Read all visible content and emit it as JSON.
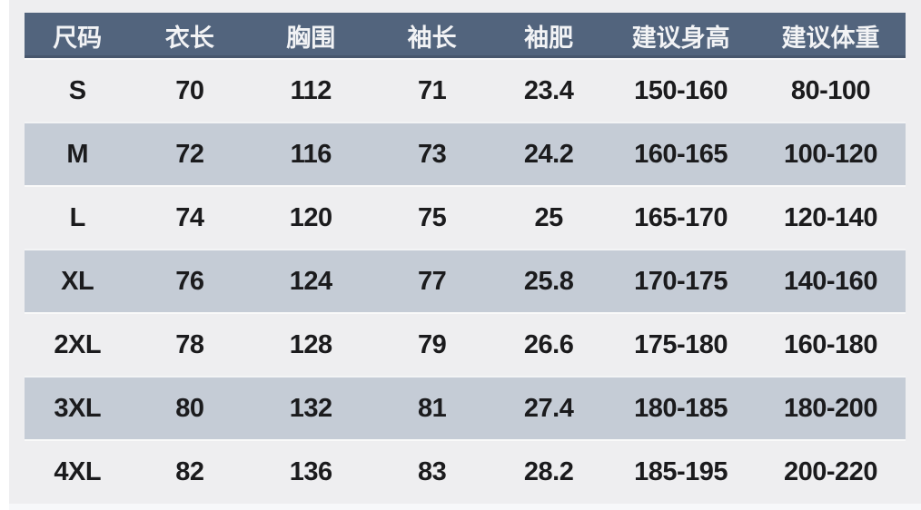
{
  "size_chart": {
    "columns": [
      "尺码",
      "衣长",
      "胸围",
      "袖长",
      "袖肥",
      "建议身高",
      "建议体重"
    ],
    "rows": [
      [
        "S",
        "70",
        "112",
        "71",
        "23.4",
        "150-160",
        "80-100"
      ],
      [
        "M",
        "72",
        "116",
        "73",
        "24.2",
        "160-165",
        "100-120"
      ],
      [
        "L",
        "74",
        "120",
        "75",
        "25",
        "165-170",
        "120-140"
      ],
      [
        "XL",
        "76",
        "124",
        "77",
        "25.8",
        "170-175",
        "140-160"
      ],
      [
        "2XL",
        "78",
        "128",
        "79",
        "26.6",
        "175-180",
        "160-180"
      ],
      [
        "3XL",
        "80",
        "132",
        "81",
        "27.4",
        "180-185",
        "180-200"
      ],
      [
        "4XL",
        "82",
        "136",
        "83",
        "28.2",
        "185-195",
        "200-220"
      ]
    ]
  },
  "colors": {
    "header_bg": "#52647d",
    "header_text": "#f2f3f5",
    "stripe_row_bg": "#c5ccd6",
    "plain_row_bg": "#eeeef0",
    "data_text": "#1b1b1d",
    "page_bg": "#eeeef0"
  }
}
